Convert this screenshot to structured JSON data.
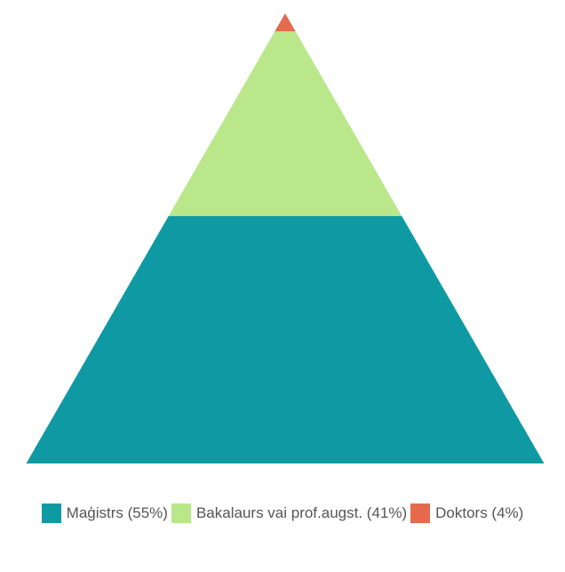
{
  "chart_data": {
    "type": "pyramid",
    "values": [
      55,
      41,
      4
    ],
    "value_labels": [
      "Maģistrs (55%)",
      "Bakalaurs vai prof.augst. (41%)",
      "Doktors (4%)"
    ],
    "colors": [
      "#0f9aa3",
      "#b9e78a",
      "#e5694c"
    ],
    "legend": "bottom"
  }
}
